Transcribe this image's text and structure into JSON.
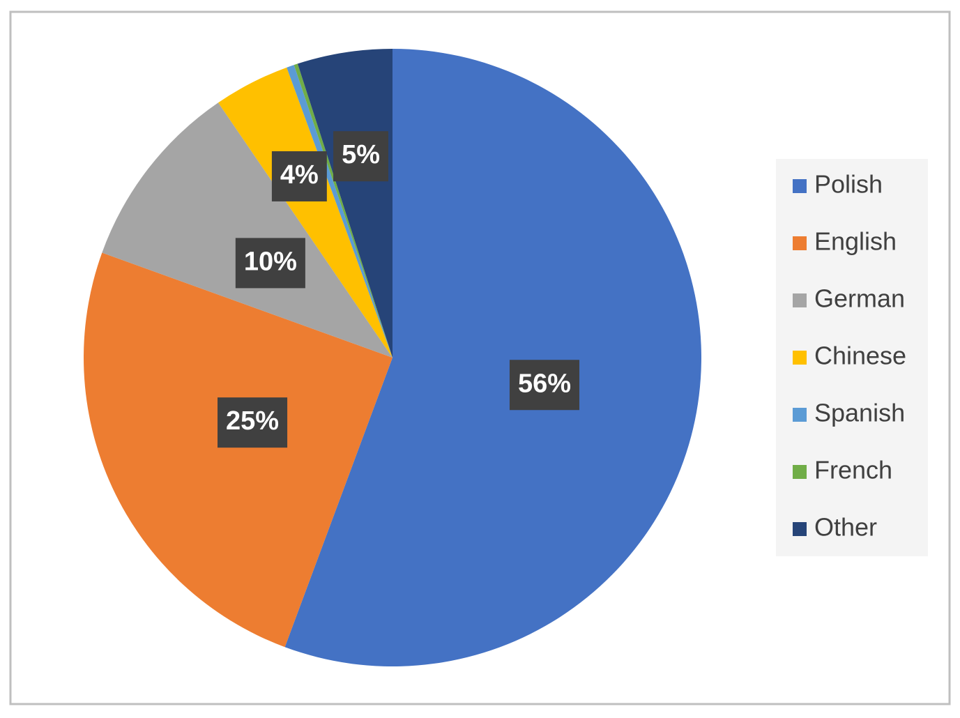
{
  "chart_data": {
    "type": "pie",
    "categories": [
      "Polish",
      "English",
      "German",
      "Chinese",
      "Spanish",
      "French",
      "Other"
    ],
    "values": [
      56,
      25,
      10,
      4,
      0.4,
      0.2,
      5
    ],
    "value_labels": [
      "56%",
      "25%",
      "10%",
      "4%",
      null,
      null,
      "5%"
    ],
    "colors": [
      "#4472c4",
      "#ed7d31",
      "#a5a5a5",
      "#ffc000",
      "#5b9bd5",
      "#70ad47",
      "#264478"
    ],
    "legend": "right"
  }
}
